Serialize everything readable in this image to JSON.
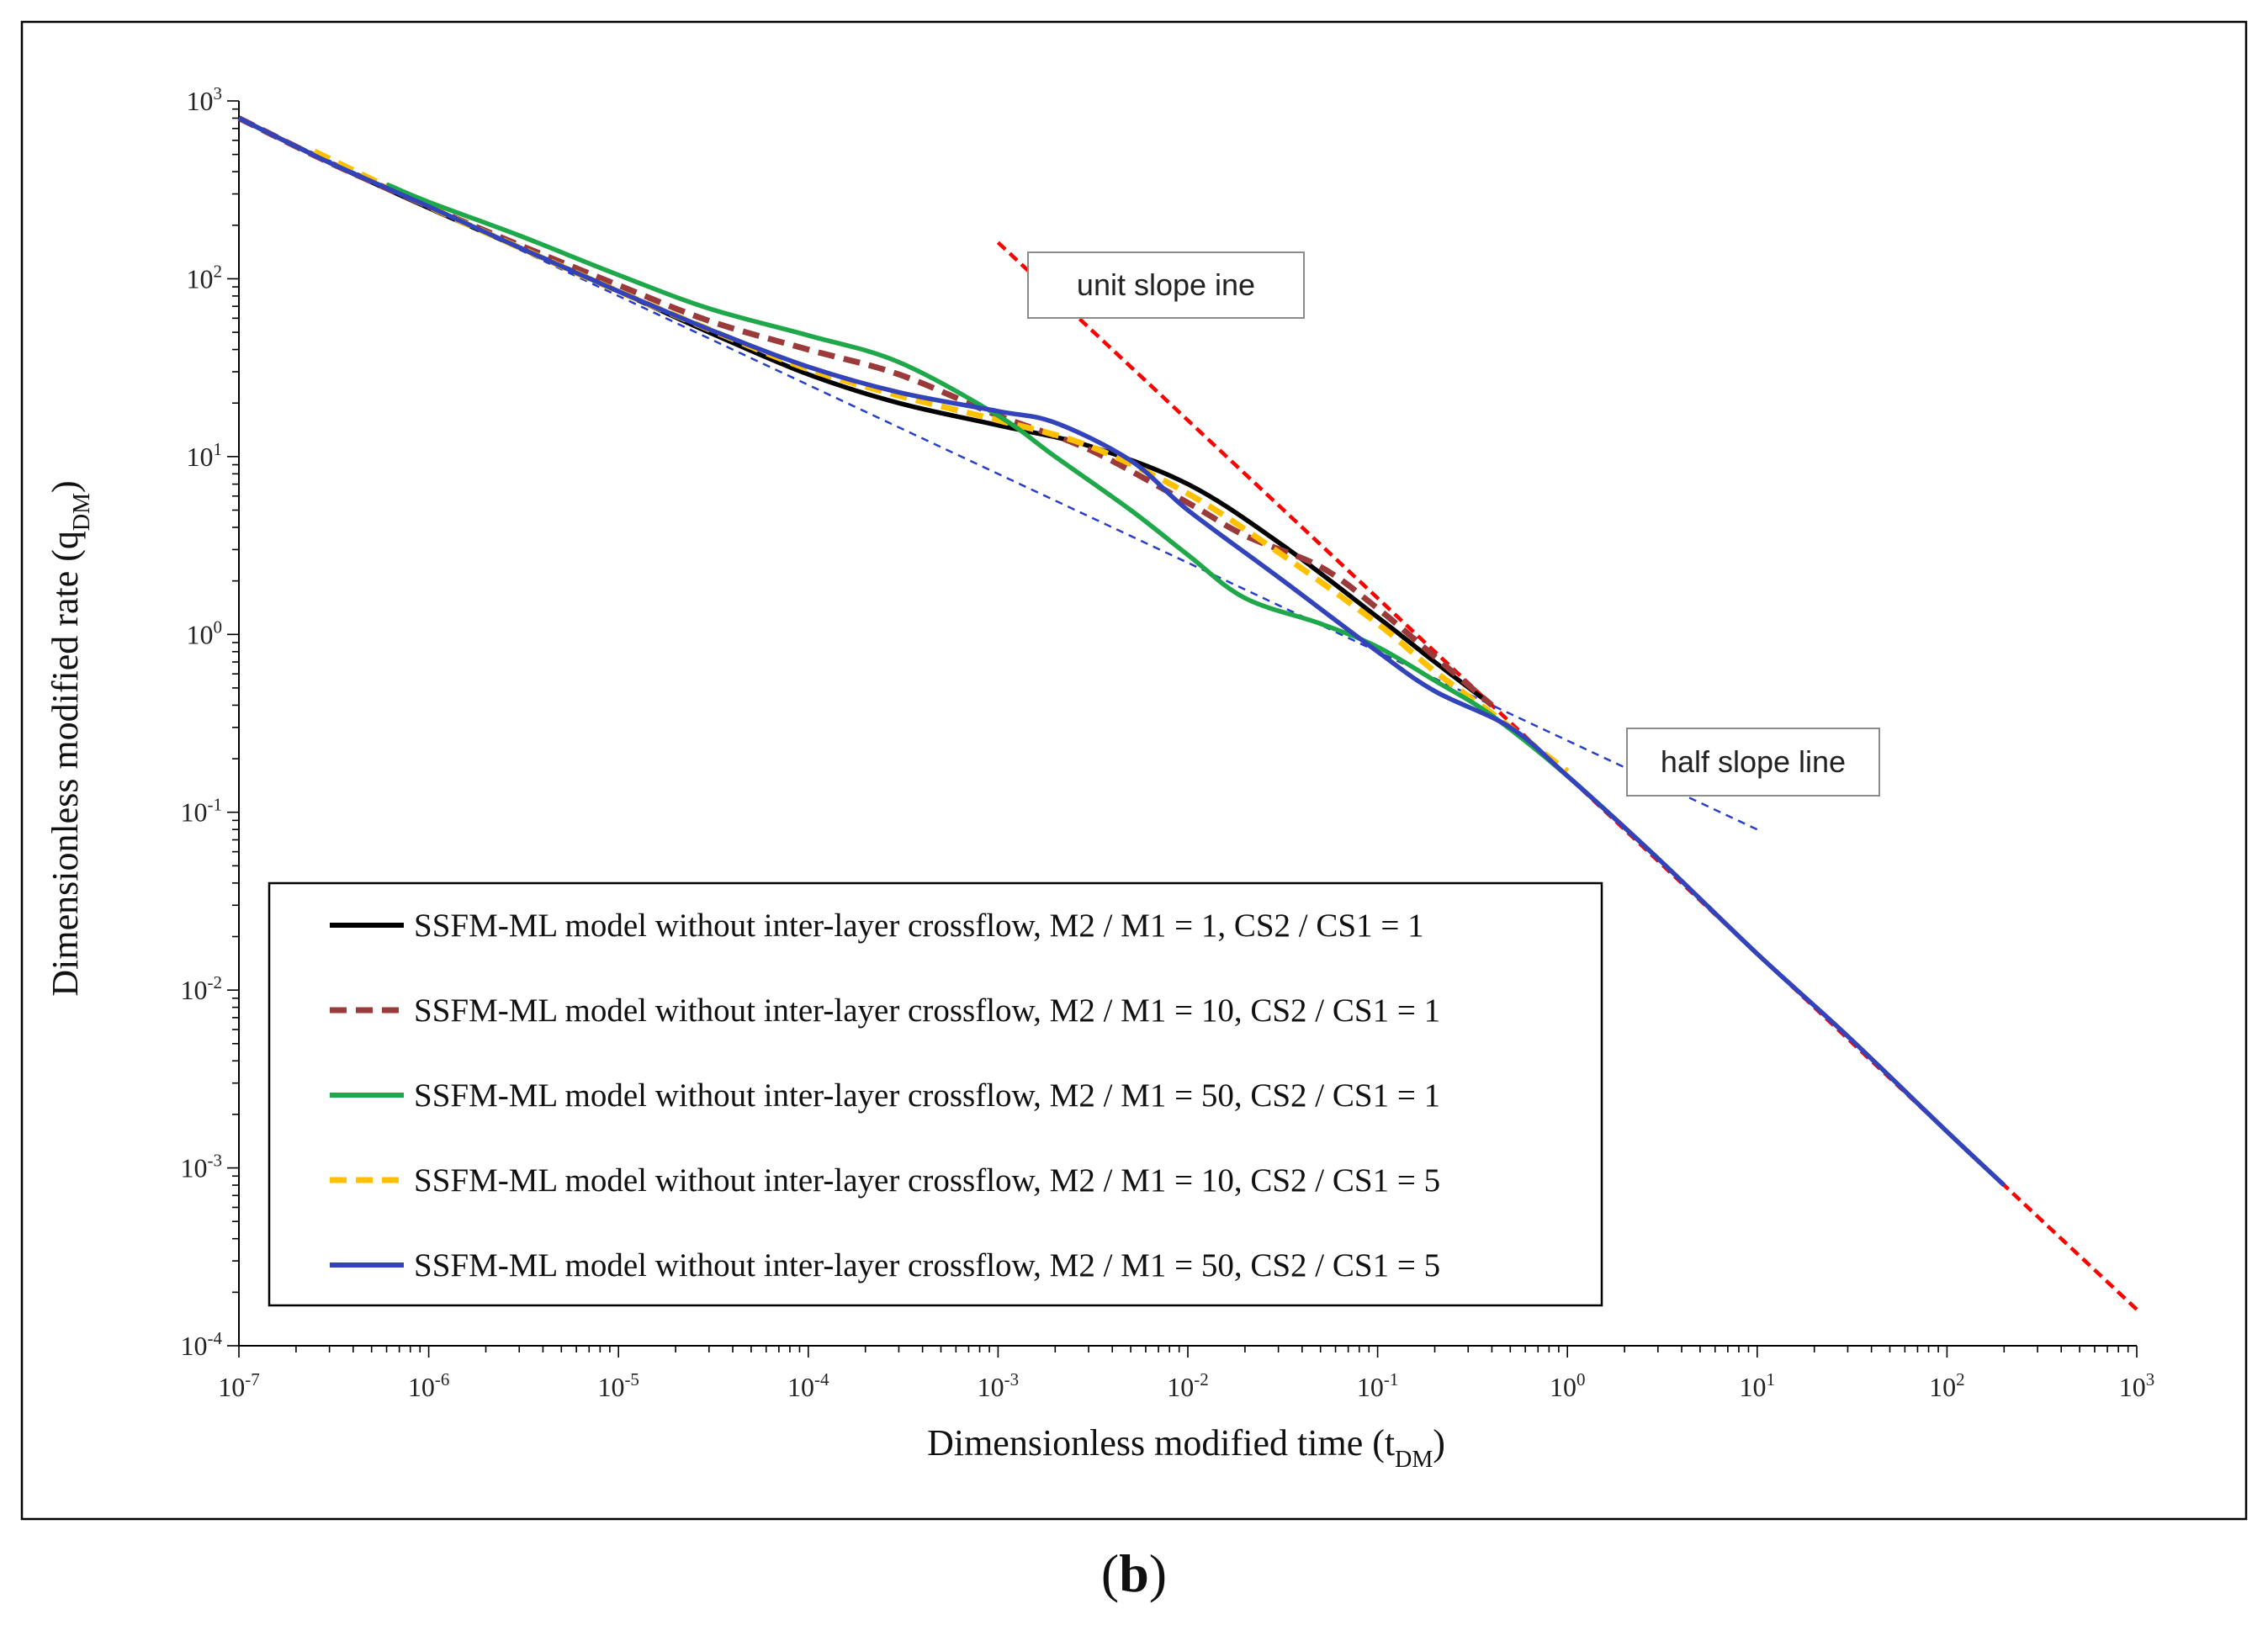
{
  "chart_data": {
    "type": "line",
    "xscale": "log",
    "yscale": "log",
    "xlabel": "Dimensionless modified time (t",
    "xlabel_sub": "DM",
    "xlabel_end": ")",
    "ylabel": "Dimensionless modified rate (q",
    "ylabel_sub": "DM",
    "ylabel_end": ")",
    "xlim": [
      1e-07,
      1000
    ],
    "ylim": [
      0.0001,
      1000
    ],
    "x_tick_exponents": [
      "-7",
      "-6",
      "-5",
      "-4",
      "-3",
      "-2",
      "-1",
      "0",
      "1",
      "2",
      "3"
    ],
    "y_tick_exponents": [
      "3",
      "2",
      "1",
      "0",
      "-1",
      "-2",
      "-3",
      "-4"
    ],
    "tick_base": "10",
    "caption_open": "(",
    "caption_letter": "b",
    "caption_close": ")",
    "series": [
      {
        "name": "SSFM-ML model without inter-layer crossflow, M2 / M1 = 1, CS2 / CS1 = 1",
        "color": "#000000",
        "dash": "solid",
        "x": [
          1e-07,
          3e-07,
          1e-06,
          3e-06,
          1e-05,
          3e-05,
          0.0001,
          0.0003,
          0.001,
          0.003,
          0.01,
          0.03,
          0.1,
          0.2,
          0.4
        ],
        "y": [
          800,
          450,
          250,
          150,
          85,
          50,
          29,
          20,
          15,
          11.5,
          7,
          3.3,
          1.25,
          0.7,
          0.4
        ]
      },
      {
        "name": "SSFM-ML model without inter-layer crossflow, M2 / M1 = 10, CS2 / CS1 = 1",
        "color": "#9b3a3a",
        "dash": "dashed",
        "x": [
          1e-07,
          3e-07,
          1e-06,
          3e-06,
          1e-05,
          3e-05,
          0.0001,
          0.0003,
          0.001,
          0.003,
          0.01,
          0.02,
          0.05,
          0.1,
          0.2,
          0.4
        ],
        "y": [
          800,
          450,
          255,
          155,
          92,
          58,
          40,
          29,
          17,
          11,
          5.5,
          3.6,
          2.4,
          1.4,
          0.75,
          0.4
        ]
      },
      {
        "name": "SSFM-ML model without inter-layer crossflow, M2 / M1 = 50, CS2 / CS1 = 1",
        "color": "#1fa84a",
        "dash": "solid",
        "x": [
          6e-07,
          1e-06,
          3e-06,
          1e-05,
          3e-05,
          0.0001,
          0.0003,
          0.001,
          0.002,
          0.005,
          0.01,
          0.02,
          0.05,
          0.1,
          0.2,
          0.4,
          1,
          3
        ],
        "y": [
          340,
          270,
          175,
          105,
          68,
          48,
          34,
          17,
          10,
          5,
          2.8,
          1.6,
          1.15,
          0.85,
          0.55,
          0.35,
          0.16,
          0.055
        ]
      },
      {
        "name": "SSFM-ML model without inter-layer crossflow, M2 / M1 = 10, CS2 / CS1 = 5",
        "color": "#ffc000",
        "dash": "dashed",
        "x": [
          2.5e-07,
          1e-06,
          3e-06,
          1e-05,
          3e-05,
          0.0001,
          0.0003,
          0.001,
          0.003,
          0.01,
          0.03,
          0.1,
          0.2,
          0.4,
          1
        ],
        "y": [
          520,
          255,
          150,
          85,
          52,
          31,
          22,
          16,
          11.5,
          6.2,
          2.9,
          1.15,
          0.62,
          0.36,
          0.17
        ]
      },
      {
        "name": "SSFM-ML model without inter-layer crossflow, M2 / M1 = 50, CS2 / CS1 = 5",
        "color": "#3344bb",
        "dash": "solid",
        "x": [
          1e-07,
          3e-07,
          1e-06,
          3e-06,
          1e-05,
          3e-05,
          0.0001,
          0.0003,
          0.001,
          0.002,
          0.005,
          0.01,
          0.03,
          0.1,
          0.2,
          0.5,
          1,
          3,
          10,
          30,
          100,
          200
        ],
        "y": [
          800,
          450,
          255,
          150,
          85,
          52,
          32,
          23,
          18,
          15.5,
          9.5,
          5,
          2.1,
          0.8,
          0.48,
          0.3,
          0.16,
          0.055,
          0.016,
          0.0055,
          0.0016,
          0.0008
        ]
      }
    ],
    "reference_lines": [
      {
        "name": "unit slope ine",
        "color": "#ff0000",
        "x": [
          0.001,
          1000
        ],
        "y": [
          160,
          0.00016
        ]
      },
      {
        "name": "half slope line",
        "color": "#2a3fc9",
        "x": [
          1e-07,
          10
        ],
        "y": [
          800,
          0.08
        ]
      }
    ]
  }
}
